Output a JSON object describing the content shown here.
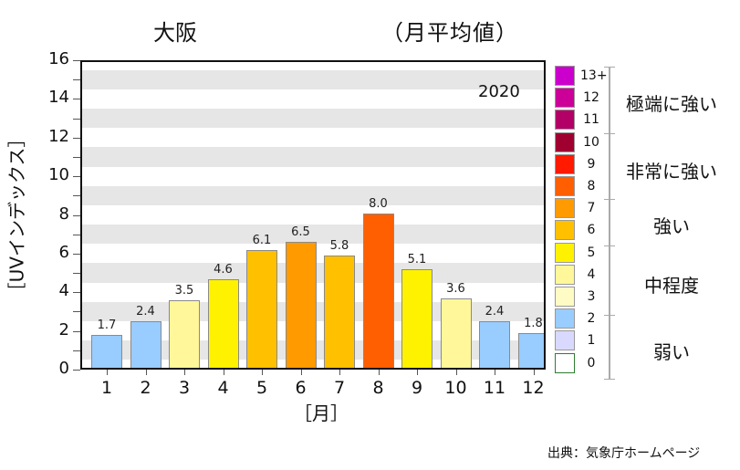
{
  "title": {
    "location": "大阪",
    "subtitle": "（月平均値）"
  },
  "year_label": "2020",
  "source": "出典：気象庁ホームページ",
  "chart_data": {
    "type": "bar",
    "title": "大阪 （月平均値）",
    "annotation": "2020",
    "xlabel": "［月］",
    "ylabel": "［UVインデックス］",
    "categories": [
      "1",
      "2",
      "3",
      "4",
      "5",
      "6",
      "7",
      "8",
      "9",
      "10",
      "11",
      "12"
    ],
    "values": [
      1.7,
      2.4,
      3.5,
      4.6,
      6.1,
      6.5,
      5.8,
      8.0,
      5.1,
      3.6,
      2.4,
      1.8
    ],
    "value_labels": [
      "1.7",
      "2.4",
      "3.5",
      "4.6",
      "6.1",
      "6.5",
      "5.8",
      "8.0",
      "5.1",
      "3.6",
      "2.4",
      "1.8"
    ],
    "bar_colors": [
      "#99ccff",
      "#99ccff",
      "#fff799",
      "#fff200",
      "#ffc000",
      "#ff9a00",
      "#ffc000",
      "#ff5f00",
      "#fff200",
      "#fff799",
      "#99ccff",
      "#99ccff"
    ],
    "ylim": [
      0,
      16
    ],
    "yticks": [
      "0",
      "2",
      "4",
      "6",
      "8",
      "10",
      "12",
      "14",
      "16"
    ],
    "grid": "alternating horizontal bands",
    "legend_position": "right",
    "legend": {
      "scale": [
        {
          "label": "13+",
          "color": "#cc00cc"
        },
        {
          "label": "12",
          "color": "#cc0099"
        },
        {
          "label": "11",
          "color": "#b30066"
        },
        {
          "label": "10",
          "color": "#a00030"
        },
        {
          "label": "9",
          "color": "#ff1a00"
        },
        {
          "label": "8",
          "color": "#ff5f00"
        },
        {
          "label": "7",
          "color": "#ff9a00"
        },
        {
          "label": "6",
          "color": "#ffc000"
        },
        {
          "label": "5",
          "color": "#fff200"
        },
        {
          "label": "4",
          "color": "#fff799"
        },
        {
          "label": "3",
          "color": "#fffbc4"
        },
        {
          "label": "2",
          "color": "#99ccff"
        },
        {
          "label": "1",
          "color": "#d9d9ff"
        },
        {
          "label": "0",
          "color": "#ffffff"
        }
      ],
      "categories": [
        "極端に強い",
        "非常に強い",
        "強い",
        "中程度",
        "弱い"
      ]
    }
  }
}
